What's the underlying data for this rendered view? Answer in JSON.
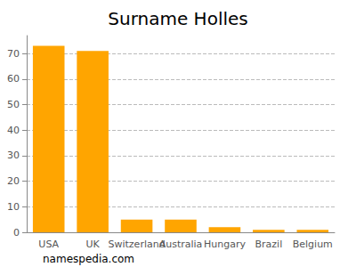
{
  "chart_data": {
    "type": "bar",
    "title": "Surname Holles",
    "categories": [
      "USA",
      "UK",
      "Switzerland",
      "Australia",
      "Hungary",
      "Brazil",
      "Belgium"
    ],
    "values": [
      73,
      71,
      5,
      5,
      2,
      1,
      1
    ],
    "color": "#ffa500",
    "ylim": [
      0,
      77
    ],
    "yticks": [
      0,
      10,
      20,
      30,
      40,
      50,
      60,
      70
    ],
    "grid": true,
    "annotations": [
      "namespedia.com"
    ]
  }
}
